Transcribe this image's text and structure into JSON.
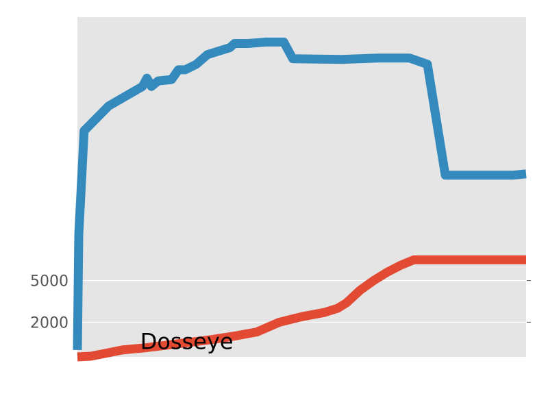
{
  "chart_data": {
    "type": "line",
    "title": "",
    "xlabel": "",
    "ylabel": "",
    "xlim": [
      0,
      100
    ],
    "ylim": [
      -500,
      24000
    ],
    "grid": true,
    "y_ticks": [
      {
        "value": 2000,
        "label": "2000"
      },
      {
        "value": 5000,
        "label": "5000"
      }
    ],
    "annotation": {
      "text": "Dosseye",
      "x": 14,
      "y": 600
    },
    "colors": {
      "background": "#e5e5e5",
      "grid": "#ffffff",
      "tick_text": "#555555"
    },
    "series": [
      {
        "color": "#348abd",
        "points": [
          [
            0,
            0
          ],
          [
            0.3,
            8300
          ],
          [
            1.5,
            15800
          ],
          [
            7,
            17600
          ],
          [
            14.5,
            19000
          ],
          [
            15.5,
            19600
          ],
          [
            16.5,
            19000
          ],
          [
            18,
            19400
          ],
          [
            21,
            19500
          ],
          [
            22.5,
            20200
          ],
          [
            24,
            20200
          ],
          [
            26.5,
            20600
          ],
          [
            29,
            21300
          ],
          [
            34,
            21800
          ],
          [
            35,
            22100
          ],
          [
            38,
            22100
          ],
          [
            42,
            22200
          ],
          [
            46,
            22200
          ],
          [
            48,
            21000
          ],
          [
            59,
            20950
          ],
          [
            67,
            21050
          ],
          [
            74,
            21050
          ],
          [
            78,
            20600
          ],
          [
            82,
            12600
          ],
          [
            97,
            12600
          ],
          [
            100,
            12700
          ]
        ]
      },
      {
        "color": "#e24a33",
        "points": [
          [
            0,
            -500
          ],
          [
            3,
            -450
          ],
          [
            7,
            -200
          ],
          [
            10,
            0
          ],
          [
            15,
            150
          ],
          [
            20,
            350
          ],
          [
            30,
            750
          ],
          [
            35,
            1000
          ],
          [
            40,
            1300
          ],
          [
            45,
            2000
          ],
          [
            50,
            2400
          ],
          [
            55,
            2700
          ],
          [
            58,
            3000
          ],
          [
            60,
            3400
          ],
          [
            63,
            4300
          ],
          [
            66,
            5000
          ],
          [
            69,
            5600
          ],
          [
            72,
            6100
          ],
          [
            75,
            6500
          ],
          [
            78,
            6500
          ],
          [
            85,
            6500
          ],
          [
            95,
            6500
          ],
          [
            100,
            6500
          ]
        ]
      }
    ]
  }
}
